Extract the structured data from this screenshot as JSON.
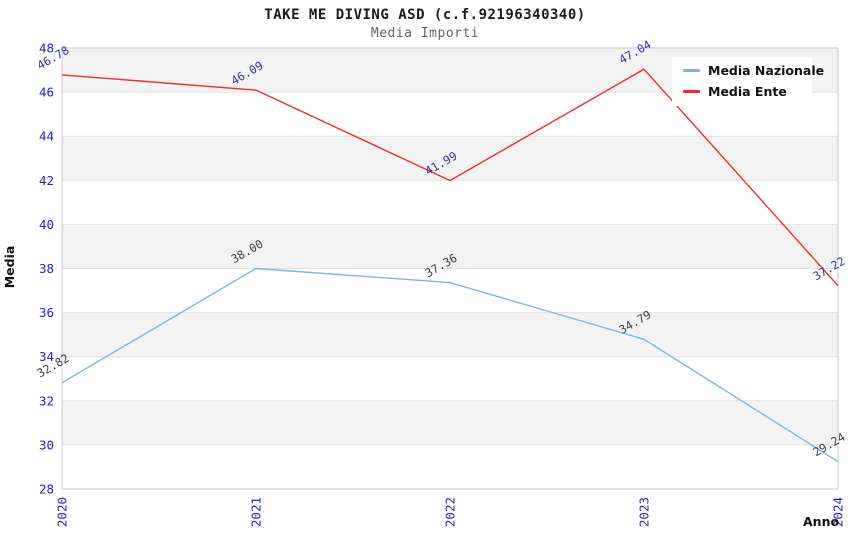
{
  "header": {
    "title": "TAKE ME DIVING ASD (c.f.92196340340)",
    "subtitle": "Media Importi"
  },
  "axes": {
    "y_title": "Media",
    "x_title": "Anno",
    "y_ticks": [
      48,
      46,
      44,
      42,
      40,
      38,
      36,
      34,
      32,
      30,
      28
    ],
    "x_ticks": [
      "2020",
      "2021",
      "2022",
      "2023",
      "2024"
    ]
  },
  "legend": {
    "items": [
      {
        "label": "Media Nazionale",
        "color": "#7FB3E6"
      },
      {
        "label": "Media Ente",
        "color": "#EC2D2D"
      }
    ]
  },
  "chart_data": {
    "type": "line",
    "title": "TAKE ME DIVING ASD (c.f.92196340340)",
    "subtitle": "Media Importi",
    "xlabel": "Anno",
    "ylabel": "Media",
    "categories": [
      "2020",
      "2021",
      "2022",
      "2023",
      "2024"
    ],
    "series": [
      {
        "name": "Media Nazionale",
        "color": "#7FB3E6",
        "label_color": "#3C3C3C",
        "values": [
          32.82,
          38.0,
          37.36,
          34.79,
          29.24
        ]
      },
      {
        "name": "Media Ente",
        "color": "#EC2D2D",
        "label_color": "#34349B",
        "values": [
          46.78,
          46.09,
          41.99,
          47.04,
          37.22
        ]
      }
    ],
    "ylim": [
      28,
      48
    ],
    "ytick_step": 2,
    "grid": "horizontal gridlines with alternating shaded bands",
    "legend_position": "top-right",
    "value_label_decimals": 2
  },
  "colors": {
    "tick_label": "#2222CF",
    "band_fill": "#F3F3F3",
    "gridline": "#E1E1E1",
    "plot_border": "#C9C9C9",
    "title": "#1A1A1A",
    "subtitle": "#666666"
  }
}
